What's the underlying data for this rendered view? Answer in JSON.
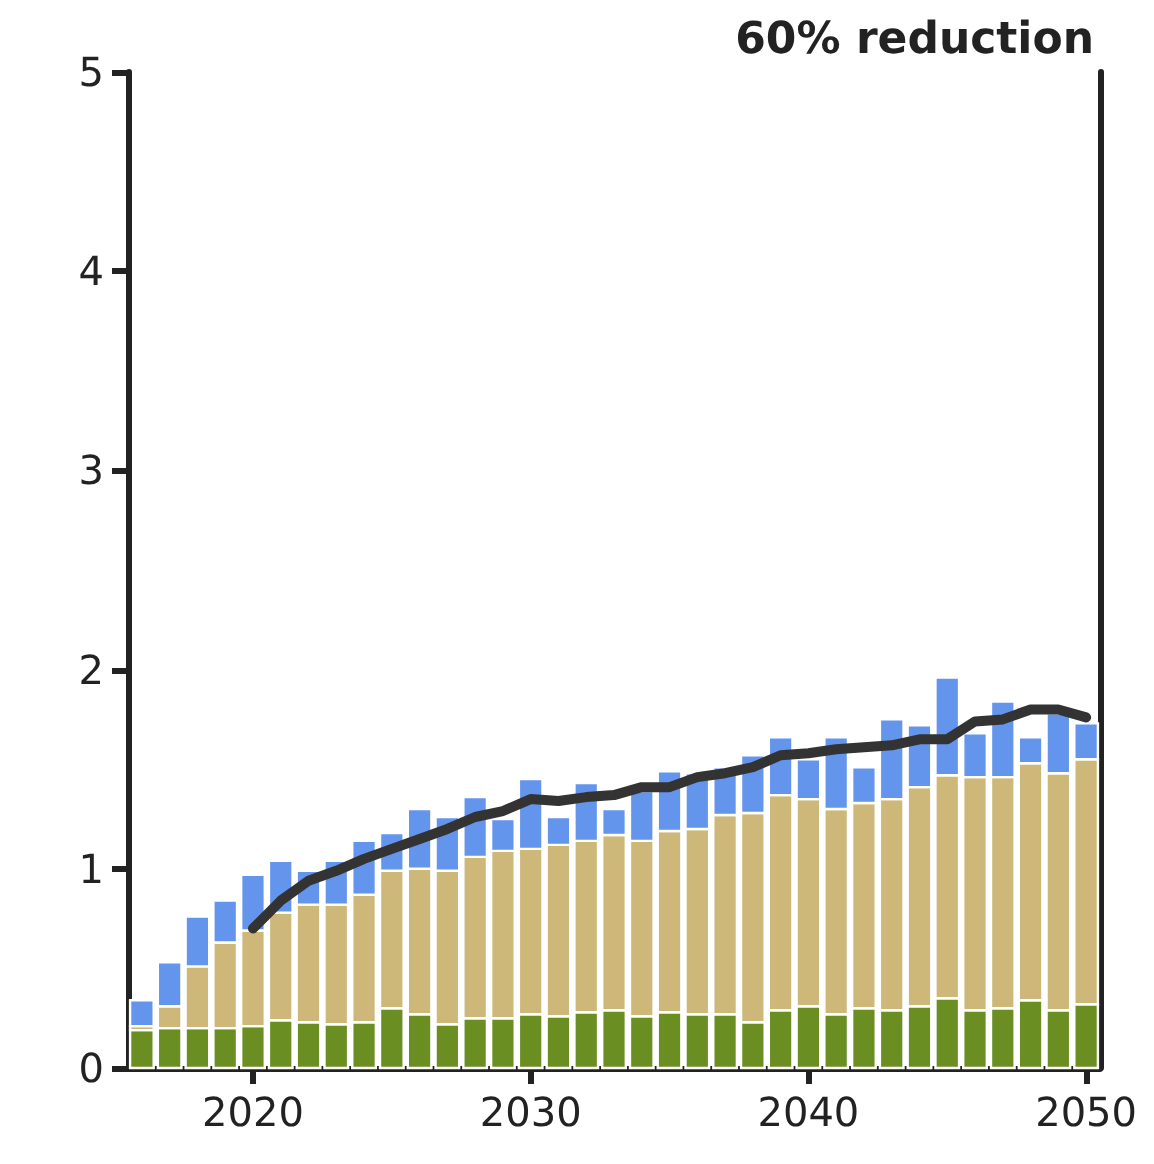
{
  "chart_data": {
    "type": "bar",
    "title": "60% reduction",
    "stacked": true,
    "x": [
      2016,
      2017,
      2018,
      2019,
      2020,
      2021,
      2022,
      2023,
      2024,
      2025,
      2026,
      2027,
      2028,
      2029,
      2030,
      2031,
      2032,
      2033,
      2034,
      2035,
      2036,
      2037,
      2038,
      2039,
      2040,
      2041,
      2042,
      2043,
      2044,
      2045,
      2046,
      2047,
      2048,
      2049,
      2050
    ],
    "series": [
      {
        "color": "#6b8e23",
        "values": [
          0.19,
          0.2,
          0.2,
          0.2,
          0.21,
          0.24,
          0.23,
          0.22,
          0.23,
          0.3,
          0.27,
          0.22,
          0.25,
          0.25,
          0.27,
          0.26,
          0.28,
          0.29,
          0.26,
          0.28,
          0.27,
          0.27,
          0.23,
          0.29,
          0.31,
          0.27,
          0.3,
          0.29,
          0.31,
          0.35,
          0.29,
          0.3,
          0.34,
          0.29,
          0.32
        ]
      },
      {
        "color": "#cdb879",
        "values": [
          0.02,
          0.11,
          0.31,
          0.43,
          0.48,
          0.54,
          0.59,
          0.6,
          0.64,
          0.69,
          0.73,
          0.77,
          0.81,
          0.84,
          0.83,
          0.86,
          0.86,
          0.88,
          0.88,
          0.91,
          0.93,
          1.0,
          1.05,
          1.08,
          1.04,
          1.03,
          1.03,
          1.06,
          1.1,
          1.12,
          1.17,
          1.16,
          1.19,
          1.19,
          1.23
        ]
      },
      {
        "color": "#6495ed",
        "values": [
          0.13,
          0.22,
          0.25,
          0.21,
          0.28,
          0.26,
          0.17,
          0.22,
          0.27,
          0.19,
          0.3,
          0.27,
          0.3,
          0.16,
          0.35,
          0.14,
          0.29,
          0.13,
          0.25,
          0.3,
          0.28,
          0.24,
          0.29,
          0.29,
          0.2,
          0.36,
          0.18,
          0.4,
          0.31,
          0.49,
          0.22,
          0.38,
          0.13,
          0.3,
          0.18
        ]
      },
      {
        "type": "line",
        "color": "#333333",
        "x": [
          2020,
          2021,
          2022,
          2023,
          2024,
          2025,
          2026,
          2027,
          2028,
          2029,
          2030,
          2031,
          2032,
          2033,
          2034,
          2035,
          2036,
          2037,
          2038,
          2039,
          2040,
          2041,
          2042,
          2043,
          2044,
          2045,
          2046,
          2047,
          2048,
          2049,
          2050
        ],
        "values": [
          0.7,
          0.84,
          0.94,
          0.99,
          1.05,
          1.1,
          1.15,
          1.2,
          1.26,
          1.29,
          1.35,
          1.34,
          1.36,
          1.37,
          1.41,
          1.41,
          1.46,
          1.48,
          1.51,
          1.57,
          1.58,
          1.6,
          1.61,
          1.62,
          1.65,
          1.65,
          1.74,
          1.75,
          1.8,
          1.8,
          1.76
        ]
      }
    ],
    "xlim": [
      2015.5,
      2050.5
    ],
    "xticks": [
      2020,
      2030,
      2040,
      2050
    ],
    "ylim": [
      0,
      5
    ],
    "yticks": [
      0,
      1,
      2,
      3,
      4,
      5
    ],
    "grid": false,
    "marker": "none",
    "line_style": "solid"
  }
}
